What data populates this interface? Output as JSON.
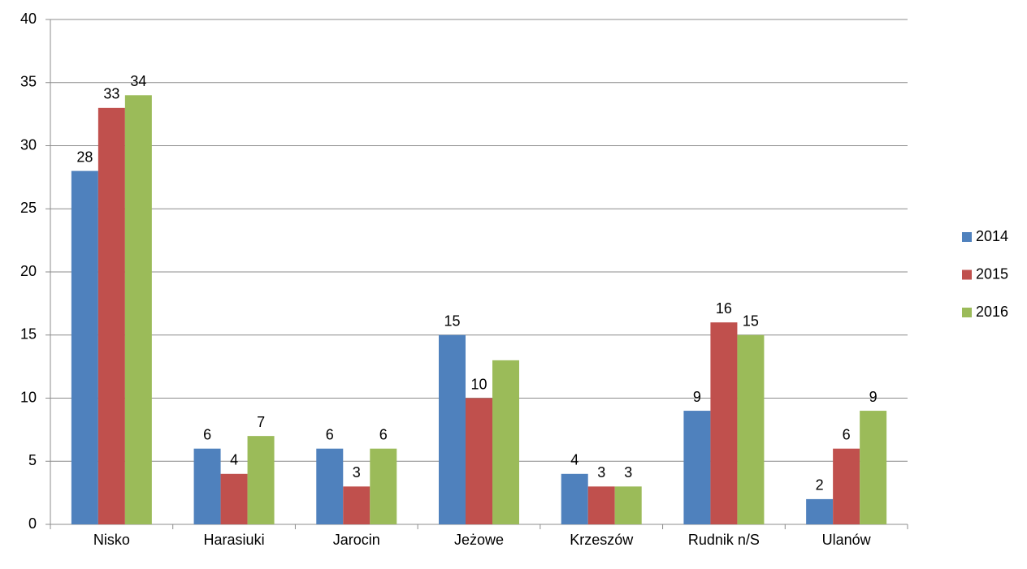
{
  "chart_data": {
    "type": "bar",
    "categories": [
      "Nisko",
      "Harasiuki",
      "Jarocin",
      "Jeżowe",
      "Krzeszów",
      "Rudnik n/S",
      "Ulanów"
    ],
    "series": [
      {
        "name": "2014",
        "color": "#4f81bd",
        "values": [
          28,
          6,
          6,
          15,
          4,
          9,
          2
        ]
      },
      {
        "name": "2015",
        "color": "#c0504d",
        "values": [
          33,
          4,
          3,
          10,
          3,
          16,
          6
        ]
      },
      {
        "name": "2016",
        "color": "#9bbb59",
        "values": [
          34,
          7,
          6,
          13,
          3,
          15,
          9
        ],
        "value_labels": [
          "34",
          "7",
          "6",
          null,
          "3",
          "15",
          "9"
        ]
      }
    ],
    "ylim": [
      0,
      40
    ],
    "yticks": [
      0,
      5,
      10,
      15,
      20,
      25,
      30,
      35,
      40
    ],
    "grid": true,
    "legend": "right"
  }
}
